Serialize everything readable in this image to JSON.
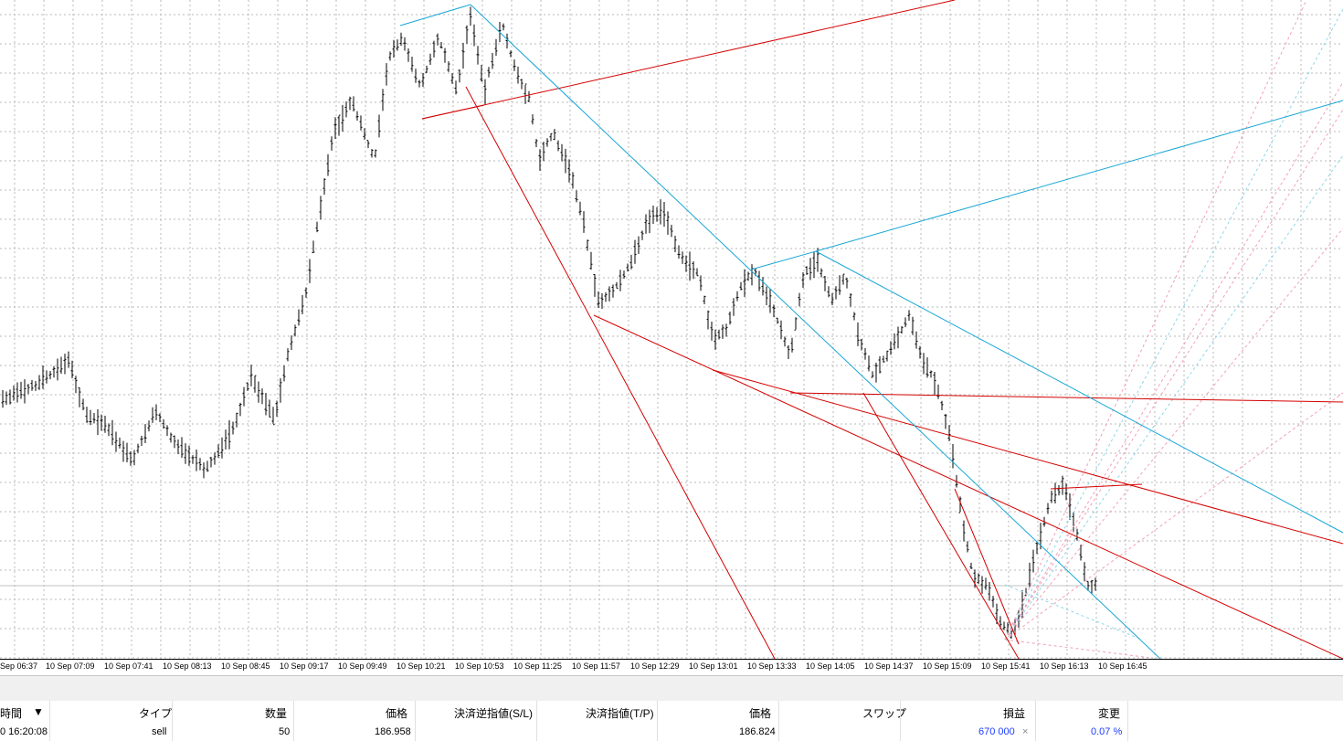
{
  "chart": {
    "time_labels": [
      "Sep 06:37",
      "10 Sep 07:09",
      "10 Sep 07:41",
      "10 Sep 08:13",
      "10 Sep 08:45",
      "10 Sep 09:17",
      "10 Sep 09:49",
      "10 Sep 10:21",
      "10 Sep 10:53",
      "10 Sep 11:25",
      "10 Sep 11:57",
      "10 Sep 12:29",
      "10 Sep 13:01",
      "10 Sep 13:33",
      "10 Sep 14:05",
      "10 Sep 14:37",
      "10 Sep 15:09",
      "10 Sep 15:41",
      "10 Sep 16:13",
      "10 Sep 16:45"
    ],
    "colors": {
      "grid": "#b8b8b8",
      "bars": "#000000",
      "trend_red": "#d40000",
      "trend_blue": "#1aa7d6",
      "fib_pink": "#f2a0b8",
      "fib_cyan": "#8fd6ea"
    }
  },
  "panel": {
    "headers": {
      "time": "時間",
      "type": "タイプ",
      "volume": "数量",
      "price": "価格",
      "sl": "決済逆指値(S/L)",
      "tp": "決済指値(T/P)",
      "price2": "価格",
      "swap": "スワップ",
      "profit": "損益",
      "change": "変更"
    },
    "sort_icon": "▼",
    "row": {
      "time": "0 16:20:08",
      "type": "sell",
      "volume": "50",
      "price": "186.958",
      "sl": "",
      "tp": "",
      "price2": "186.824",
      "swap": "",
      "profit": "670 000",
      "close_icon": "×",
      "change": "0.07 %"
    }
  }
}
